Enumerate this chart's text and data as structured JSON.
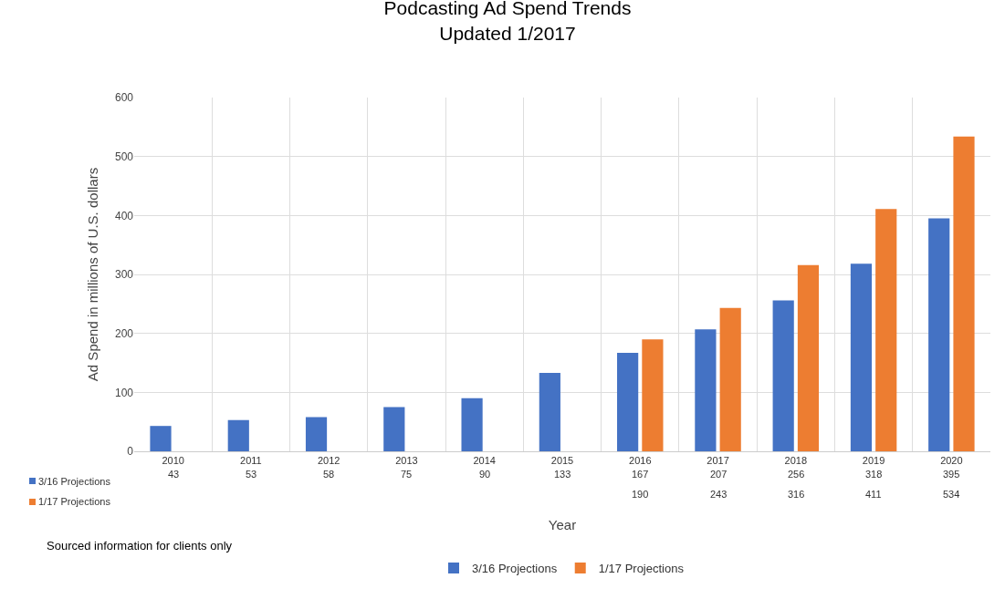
{
  "chart_data": {
    "type": "bar",
    "title": "Podcasting Ad Spend Trends",
    "subtitle": "Updated 1/2017",
    "xlabel": "Year",
    "ylabel": "Ad Spend in millions of U.S. dollars",
    "categories": [
      "2010",
      "2011",
      "2012",
      "2013",
      "2014",
      "2015",
      "2016",
      "2017",
      "2018",
      "2019",
      "2020"
    ],
    "series": [
      {
        "name": "3/16 Projections",
        "color": "#4472c4",
        "values": [
          43,
          53,
          58,
          75,
          90,
          133,
          167,
          207,
          256,
          318,
          395
        ]
      },
      {
        "name": "1/17 Projections",
        "color": "#ed7d31",
        "values": [
          null,
          null,
          null,
          null,
          null,
          null,
          190,
          243,
          316,
          411,
          534
        ]
      }
    ],
    "ylim": [
      0,
      600
    ],
    "yticks": [
      0,
      100,
      200,
      300,
      400,
      500,
      600
    ],
    "grid": true,
    "legend": "bottom",
    "data_labels": true,
    "annotations": [
      "Sourced information for clients only"
    ]
  }
}
